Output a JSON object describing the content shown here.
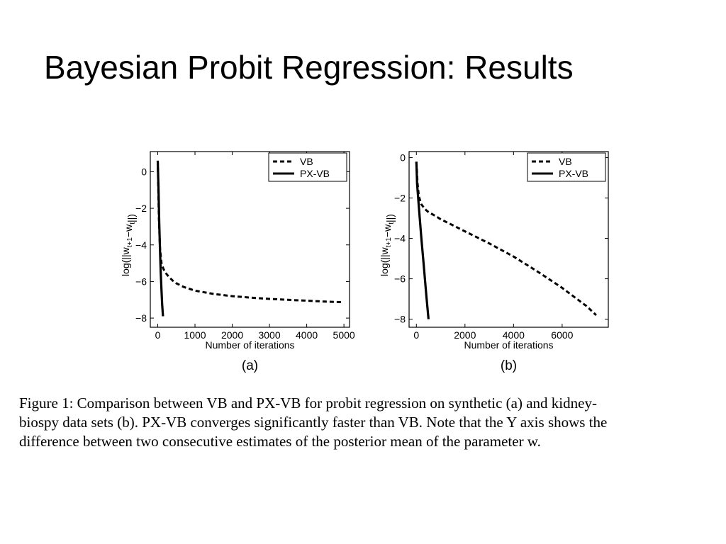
{
  "slide": {
    "title": "Bayesian Probit Regression: Results"
  },
  "caption": {
    "lines": [
      "Figure 1:  Comparison between VB and PX-VB for probit regression on synthetic (a) and kidney-",
      "biospy data sets (b). PX-VB converges significantly faster than VB. Note that the Y axis shows the",
      "difference between two consecutive estimates of the posterior mean of the parameter w."
    ]
  },
  "chart_data": [
    {
      "type": "line",
      "panel_label": "(a)",
      "xlabel": "Number of iterations",
      "ylabel": "log(||w_{t+1} − w_t||)",
      "xlim": [
        -200,
        5150
      ],
      "ylim": [
        -8.5,
        1.1
      ],
      "xticks": [
        0,
        1000,
        2000,
        3000,
        4000,
        5000
      ],
      "yticks": [
        0,
        -2,
        -4,
        -6,
        -8
      ],
      "ytick_labels": [
        "0",
        "−2",
        "−4",
        "−6",
        "−8"
      ],
      "legend_position": "top-right",
      "series": [
        {
          "name": "VB",
          "style": "dashed",
          "x": [
            0,
            30,
            60,
            100,
            150,
            200,
            300,
            400,
            500,
            700,
            1000,
            1500,
            2000,
            2500,
            3000,
            3500,
            4000,
            4500,
            4950
          ],
          "y": [
            0.6,
            -2.5,
            -4.2,
            -5.0,
            -5.3,
            -5.5,
            -5.75,
            -5.95,
            -6.1,
            -6.3,
            -6.5,
            -6.68,
            -6.8,
            -6.88,
            -6.95,
            -7.0,
            -7.05,
            -7.1,
            -7.13
          ]
        },
        {
          "name": "PX-VB",
          "style": "solid",
          "x": [
            0,
            20,
            40,
            60,
            80,
            100,
            120,
            140
          ],
          "y": [
            0.6,
            -1.0,
            -2.8,
            -4.3,
            -5.5,
            -6.5,
            -7.3,
            -7.9
          ]
        }
      ]
    },
    {
      "type": "line",
      "panel_label": "(b)",
      "xlabel": "Number of iterations",
      "ylabel": "log(||w_{t+1} − w_t||)",
      "xlim": [
        -300,
        7900
      ],
      "ylim": [
        -8.4,
        0.3
      ],
      "xticks": [
        0,
        2000,
        4000,
        6000
      ],
      "yticks": [
        0,
        -2,
        -4,
        -6,
        -8
      ],
      "ytick_labels": [
        "0",
        "−2",
        "−4",
        "−6",
        "−8"
      ],
      "legend_position": "top-right",
      "series": [
        {
          "name": "VB",
          "style": "dashed",
          "x": [
            0,
            50,
            100,
            200,
            350,
            500,
            800,
            1000,
            1500,
            2000,
            3000,
            4000,
            5000,
            6000,
            7000,
            7400
          ],
          "y": [
            -0.2,
            -1.3,
            -1.9,
            -2.3,
            -2.55,
            -2.7,
            -2.9,
            -3.05,
            -3.35,
            -3.65,
            -4.25,
            -4.9,
            -5.65,
            -6.45,
            -7.35,
            -7.8
          ]
        },
        {
          "name": "PX-VB",
          "style": "solid",
          "x": [
            0,
            30,
            100,
            200,
            300,
            400,
            500
          ],
          "y": [
            -0.2,
            -1.3,
            -2.4,
            -3.9,
            -5.3,
            -6.7,
            -8.0
          ]
        }
      ]
    }
  ]
}
